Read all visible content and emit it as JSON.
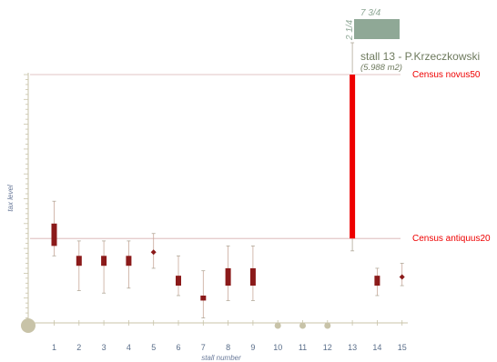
{
  "chart_data": {
    "type": "box",
    "xlabel": "stall number",
    "ylabel": "tax level",
    "categories": [
      "1",
      "2",
      "3",
      "4",
      "5",
      "6",
      "7",
      "8",
      "9",
      "10",
      "11",
      "12",
      "13",
      "14",
      "15"
    ],
    "ylim": [
      0,
      100
    ],
    "boxes": [
      {
        "stall": "1",
        "whisker_low": 27,
        "box_low": 31,
        "box_high": 40,
        "whisker_high": 49,
        "style": "box"
      },
      {
        "stall": "2",
        "whisker_low": 13,
        "box_low": 23,
        "box_high": 27,
        "whisker_high": 33,
        "style": "box"
      },
      {
        "stall": "3",
        "whisker_low": 12,
        "box_low": 23,
        "box_high": 27,
        "whisker_high": 33,
        "style": "box"
      },
      {
        "stall": "4",
        "whisker_low": 14,
        "box_low": 23,
        "box_high": 27,
        "whisker_high": 33,
        "style": "box"
      },
      {
        "stall": "5",
        "whisker_low": 22,
        "box_low": 28,
        "box_high": 29,
        "whisker_high": 36,
        "style": "diamond"
      },
      {
        "stall": "6",
        "whisker_low": 11,
        "box_low": 15,
        "box_high": 19,
        "whisker_high": 27,
        "style": "box"
      },
      {
        "stall": "7",
        "whisker_low": 2,
        "box_low": 9,
        "box_high": 11,
        "whisker_high": 21,
        "style": "box"
      },
      {
        "stall": "8",
        "whisker_low": 9,
        "box_low": 15,
        "box_high": 22,
        "whisker_high": 31,
        "style": "box"
      },
      {
        "stall": "9",
        "whisker_low": 9,
        "box_low": 15,
        "box_high": 22,
        "whisker_high": 31,
        "style": "box"
      },
      {
        "stall": "13",
        "whisker_low": 29,
        "box_low": 34,
        "box_high": 100,
        "whisker_high": 100,
        "style": "bar"
      },
      {
        "stall": "14",
        "whisker_low": 11,
        "box_low": 15,
        "box_high": 19,
        "whisker_high": 22,
        "style": "box"
      },
      {
        "stall": "15",
        "whisker_low": 15,
        "box_low": 18,
        "box_high": 19,
        "whisker_high": 24,
        "style": "diamond"
      }
    ],
    "empty_stalls": [
      "10",
      "11",
      "12"
    ],
    "reference_lines": [
      {
        "label": "Census novus50",
        "y": 100,
        "color": "#ee0000"
      },
      {
        "label": "Census antiquus20",
        "y": 34,
        "color": "#ee0000"
      }
    ],
    "tooltip": {
      "title": "stall 13 - P.Krzeczkowski",
      "area": "(5.988 m2)",
      "width_label": "7 3/4",
      "depth_label": "2 1/4",
      "stall": "13"
    }
  },
  "colors": {
    "box": "#8b1a1a",
    "highlight": "#ee0000",
    "axis": "#c8c3a8",
    "tooltip_fill": "#8fa896",
    "tooltip_text": "#6e7a5e",
    "tick_text": "#5a6e8a",
    "dot": "#c8c3a8"
  }
}
